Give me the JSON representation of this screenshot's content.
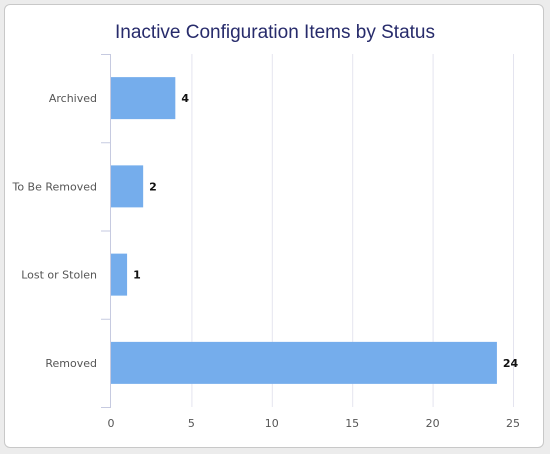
{
  "chart_data": {
    "type": "bar",
    "orientation": "horizontal",
    "title": "Inactive Configuration Items by Status",
    "categories": [
      "Archived",
      "To Be Removed",
      "Lost or Stolen",
      "Removed"
    ],
    "values": [
      4,
      2,
      1,
      24
    ],
    "xlim": [
      0,
      25
    ],
    "xticks": [
      0,
      5,
      10,
      15,
      20,
      25
    ],
    "grid": true,
    "legend": "none",
    "bar_color": "#75adec",
    "grid_color": "#e4e4ef",
    "axis_color": "#c6cae0"
  }
}
